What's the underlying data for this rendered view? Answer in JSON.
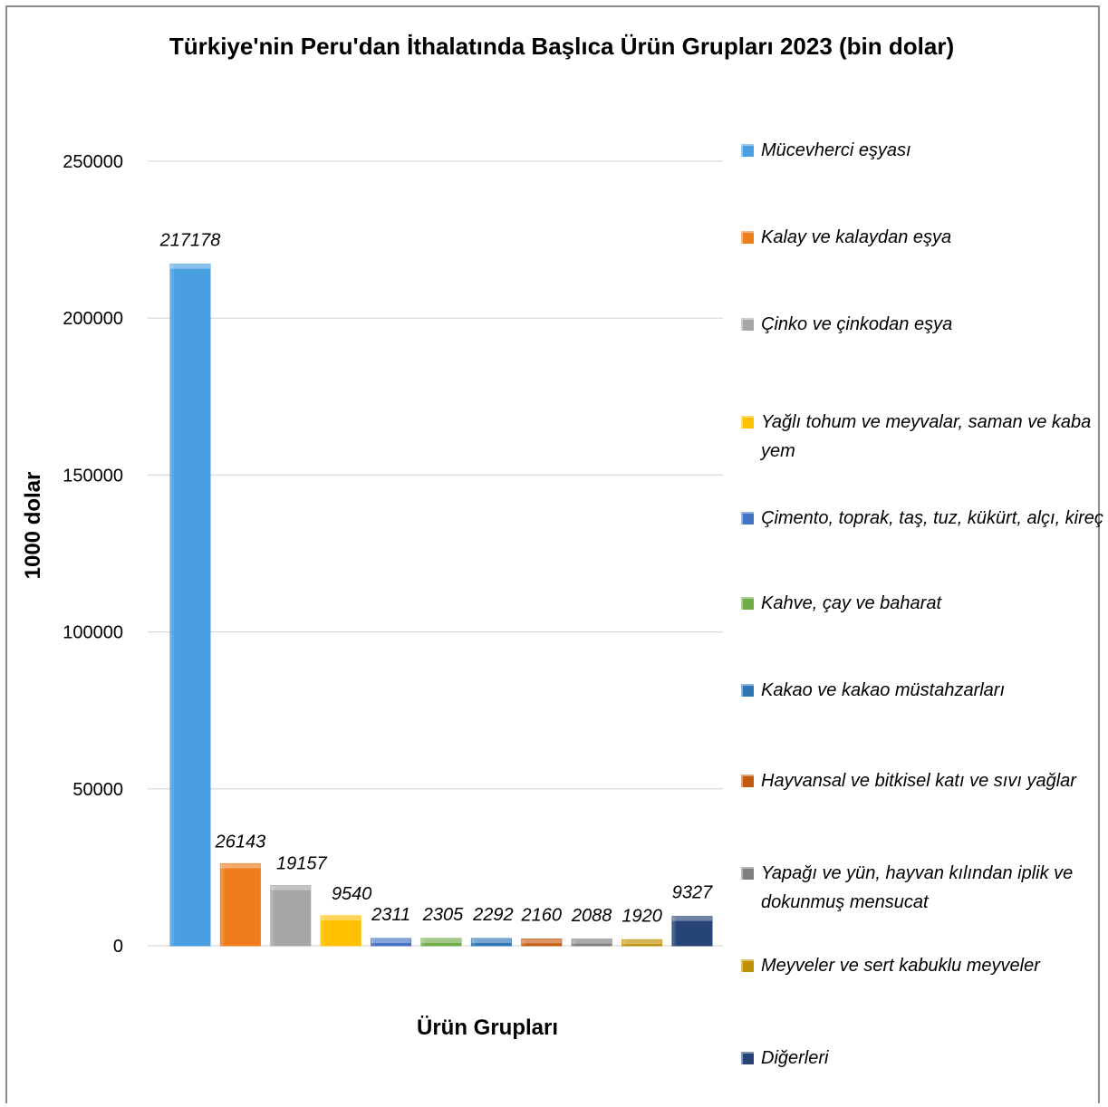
{
  "chart_data": {
    "type": "bar",
    "title": "Türkiye'nin Peru'dan İthalatında Başlıca Ürün Grupları 2023 (bin dolar)",
    "xlabel": "Ürün Grupları",
    "ylabel": "1000 dolar",
    "ylim": [
      0,
      250000
    ],
    "yticks": [
      "250000",
      "200000",
      "150000",
      "100000",
      "50000",
      "0"
    ],
    "grid": true,
    "legend_position": "right",
    "series": [
      {
        "name": "Mücevherci eşyası",
        "value": 217178,
        "label": "217178",
        "color": "#4a9fe0"
      },
      {
        "name": "Kalay ve kalaydan eşya",
        "value": 26143,
        "label": "26143",
        "color": "#f07d1c"
      },
      {
        "name": "Çinko ve çinkodan eşya",
        "value": 19157,
        "label": "19157",
        "color": "#a6a6a6"
      },
      {
        "name": "Yağlı tohum ve meyvalar, saman ve kaba yem",
        "value": 9540,
        "label": "9540",
        "color": "#ffc000"
      },
      {
        "name": "Çimento, toprak, taş, tuz, kükürt, alçı, kireç",
        "value": 2311,
        "label": "2311",
        "color": "#4472c4"
      },
      {
        "name": "Kahve, çay ve baharat",
        "value": 2305,
        "label": "2305",
        "color": "#70ad47"
      },
      {
        "name": "Kakao ve kakao müstahzarları",
        "value": 2292,
        "label": "2292",
        "color": "#2e75b6"
      },
      {
        "name": "Hayvansal ve bitkisel katı ve sıvı yağlar",
        "value": 2160,
        "label": "2160",
        "color": "#c55a11"
      },
      {
        "name": "Yapağı ve yün, hayvan kılından iplik ve dokunmuş mensucat",
        "value": 2088,
        "label": "2088",
        "color": "#7f7f7f"
      },
      {
        "name": "Meyveler ve sert kabuklu meyveler",
        "value": 1920,
        "label": "1920",
        "color": "#bf9000"
      },
      {
        "name": "Diğerleri",
        "value": 9327,
        "label": "9327",
        "color": "#264478"
      }
    ]
  }
}
